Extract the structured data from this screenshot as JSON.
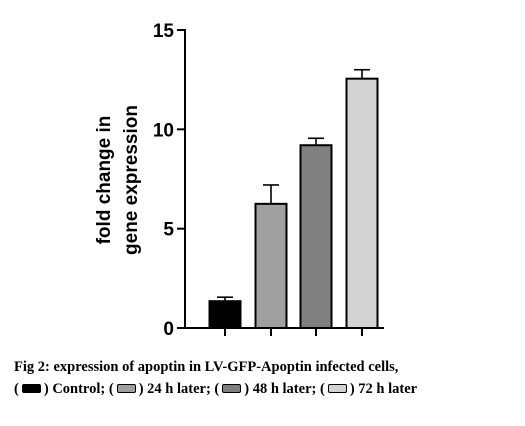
{
  "chart_data": {
    "type": "bar",
    "categories": [
      "Control",
      "24 h later",
      "48 h later",
      "72 h later"
    ],
    "values": [
      1.35,
      6.25,
      9.2,
      12.55
    ],
    "errors": [
      0.2,
      0.95,
      0.35,
      0.45
    ],
    "colors": [
      "#000000",
      "#a0a0a0",
      "#808080",
      "#d3d3d3"
    ],
    "ylabel_line1": "fold change in",
    "ylabel_line2": "gene expression",
    "ylim": [
      0,
      15
    ],
    "yticks": [
      0,
      5,
      10,
      15
    ],
    "ytick_labels": [
      "0",
      "5",
      "10",
      "15"
    ],
    "grid": false
  },
  "caption": {
    "line1": "Fig 2: expression of apoptin in LV-GFP-Apoptin infected cells,",
    "legend": [
      {
        "label": "Control;",
        "color": "#000000"
      },
      {
        "label": "24 h later;",
        "color": "#a0a0a0"
      },
      {
        "label": "48 h later;",
        "color": "#808080"
      },
      {
        "label": "72 h later",
        "color": "#d3d3d3"
      }
    ]
  }
}
